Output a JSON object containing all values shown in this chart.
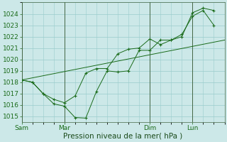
{
  "background_color": "#cce8e8",
  "plot_bg_color": "#cce8e8",
  "grid_color": "#99cccc",
  "line_color": "#1a6b1a",
  "marker_color": "#1a6b1a",
  "ylim": [
    1014.5,
    1025.0
  ],
  "yticks": [
    1015,
    1016,
    1017,
    1018,
    1019,
    1020,
    1021,
    1022,
    1023,
    1024
  ],
  "xlabel": "Pression niveau de la mer( hPa )",
  "xlabel_fontsize": 7.5,
  "tick_label_fontsize": 6.5,
  "day_labels": [
    "Sam",
    "Mar",
    "Dim",
    "Lun"
  ],
  "day_positions": [
    0,
    2,
    6,
    8
  ],
  "xlim": [
    0,
    9.5
  ],
  "series1_x": [
    0,
    0.5,
    1.0,
    1.5,
    2.0,
    2.5,
    3.0,
    3.5,
    4.0,
    4.5,
    5.0,
    5.5,
    6.0,
    6.5,
    7.0,
    7.5,
    8.0,
    8.5,
    9.0
  ],
  "series1_y": [
    1018.2,
    1018.0,
    1017.0,
    1016.1,
    1015.9,
    1014.9,
    1014.85,
    1017.2,
    1019.0,
    1018.9,
    1019.0,
    1020.8,
    1020.8,
    1021.7,
    1021.7,
    1022.0,
    1024.1,
    1024.5,
    1024.3
  ],
  "series2_x": [
    0,
    0.5,
    1.0,
    1.5,
    2.0,
    2.5,
    3.0,
    3.5,
    4.0,
    4.5,
    5.0,
    5.5,
    6.0,
    6.5,
    7.0,
    7.5,
    8.0,
    8.5,
    9.0
  ],
  "series2_y": [
    1018.2,
    1018.0,
    1017.0,
    1016.5,
    1016.2,
    1016.8,
    1018.8,
    1019.2,
    1019.2,
    1020.5,
    1020.9,
    1021.0,
    1021.8,
    1021.3,
    1021.7,
    1022.2,
    1023.8,
    1024.3,
    1023.0
  ],
  "trend_x": [
    0,
    9.5
  ],
  "trend_y": [
    1018.2,
    1021.7
  ]
}
